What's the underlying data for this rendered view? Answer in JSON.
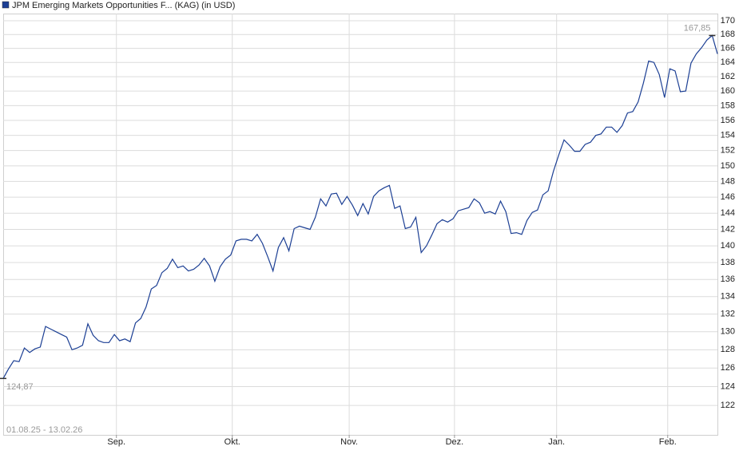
{
  "chart_data": {
    "type": "line",
    "subtitle": "01.08.25 - 13.02.26",
    "series": [
      {
        "name": "JPM Emerging Markets Opportunities F... (KAG) (in USD)",
        "color": "#1c3f94",
        "values": [
          124.87,
          125.9,
          126.8,
          126.7,
          128.2,
          127.7,
          128.1,
          128.3,
          130.6,
          130.3,
          130.0,
          129.7,
          129.4,
          128.0,
          128.2,
          128.5,
          130.9,
          129.6,
          129.0,
          128.8,
          128.8,
          129.7,
          129.0,
          129.2,
          128.9,
          131.0,
          131.5,
          132.8,
          134.9,
          135.3,
          136.8,
          137.3,
          138.4,
          137.4,
          137.6,
          137.0,
          137.2,
          137.7,
          138.5,
          137.6,
          135.8,
          137.5,
          138.4,
          138.9,
          140.6,
          140.8,
          140.8,
          140.6,
          141.4,
          140.3,
          138.7,
          137.0,
          139.8,
          141.0,
          139.4,
          142.1,
          142.4,
          142.2,
          142.0,
          143.5,
          145.8,
          144.9,
          146.4,
          146.5,
          145.1,
          146.1,
          145.0,
          143.7,
          145.2,
          143.9,
          146.1,
          146.8,
          147.2,
          147.5,
          144.6,
          144.9,
          142.1,
          142.3,
          143.5,
          139.2,
          140.0,
          141.3,
          142.7,
          143.2,
          142.9,
          143.3,
          144.3,
          144.5,
          144.7,
          145.8,
          145.3,
          144.0,
          144.2,
          143.9,
          145.5,
          144.2,
          141.5,
          141.6,
          141.4,
          143.1,
          144.1,
          144.4,
          146.3,
          146.8,
          149.3,
          151.4,
          153.4,
          152.7,
          151.9,
          151.9,
          152.8,
          153.1,
          154.0,
          154.2,
          155.1,
          155.1,
          154.4,
          155.3,
          157.0,
          157.2,
          158.5,
          161.1,
          164.2,
          164.0,
          162.3,
          159.1,
          163.1,
          162.8,
          159.9,
          160.0,
          163.9,
          165.2,
          166.1,
          167.2,
          167.85,
          165.2
        ],
        "value_labels": [
          "124,87",
          null,
          null,
          null,
          null,
          null,
          null,
          null,
          null,
          null,
          null,
          null,
          null,
          null,
          null,
          null,
          null,
          null,
          null,
          null,
          null,
          null,
          null,
          null,
          null,
          null,
          null,
          null,
          null,
          null,
          null,
          null,
          null,
          null,
          null,
          null,
          null,
          null,
          null,
          null,
          null,
          null,
          null,
          null,
          null,
          null,
          null,
          null,
          null,
          null,
          null,
          null,
          null,
          null,
          null,
          null,
          null,
          null,
          null,
          null,
          null,
          null,
          null,
          null,
          null,
          null,
          null,
          null,
          null,
          null,
          null,
          null,
          null,
          null,
          null,
          null,
          null,
          null,
          null,
          null,
          null,
          null,
          null,
          null,
          null,
          null,
          null,
          null,
          null,
          null,
          null,
          null,
          null,
          null,
          null,
          null,
          null,
          null,
          null,
          null,
          null,
          null,
          null,
          null,
          null,
          null,
          null,
          null,
          null,
          null,
          null,
          null,
          null,
          null,
          null,
          null,
          null,
          null,
          null,
          null,
          null,
          null,
          null,
          null,
          null,
          null,
          null,
          null,
          null,
          null,
          null,
          null,
          null,
          null,
          "167,85",
          null
        ]
      }
    ],
    "xlim": [
      0,
      135
    ],
    "xticks": [
      {
        "value": 21.4,
        "label": "Sep."
      },
      {
        "value": 43.3,
        "label": "Okt."
      },
      {
        "value": 65.4,
        "label": "Nov."
      },
      {
        "value": 85.3,
        "label": "Dez."
      },
      {
        "value": 104.6,
        "label": "Jan."
      },
      {
        "value": 125.6,
        "label": "Feb."
      }
    ],
    "ylim": [
      118.94,
      171.06
    ],
    "yticks": [
      122,
      124,
      126,
      128,
      130,
      132,
      134,
      136,
      138,
      140,
      142,
      144,
      146,
      148,
      150,
      152,
      154,
      156,
      158,
      160,
      162,
      164,
      166,
      168,
      170
    ],
    "log_y": true,
    "y_axis_side": "right",
    "grid": true
  }
}
